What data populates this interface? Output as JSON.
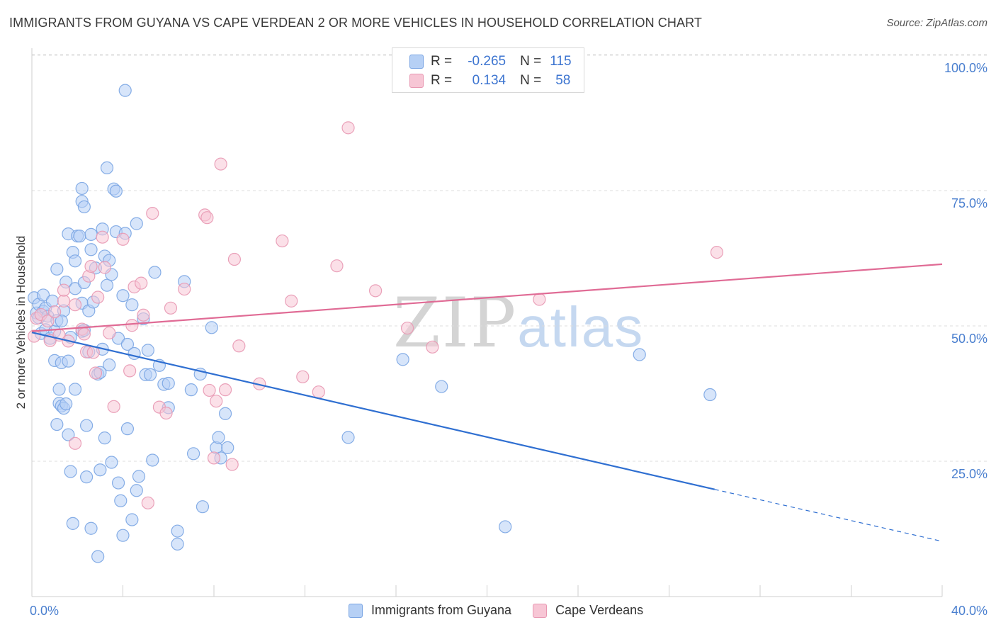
{
  "title": "IMMIGRANTS FROM GUYANA VS CAPE VERDEAN 2 OR MORE VEHICLES IN HOUSEHOLD CORRELATION CHART",
  "source": "Source: ZipAtlas.com",
  "watermark": {
    "part1": "ZIP",
    "part2": "atlas"
  },
  "legend_top": {
    "rows": [
      {
        "r_label": "R =",
        "r_value": "-0.265",
        "n_label": "N =",
        "n_value": "115",
        "color": "#b6d0f5"
      },
      {
        "r_label": "R =",
        "r_value": "0.134",
        "n_label": "N =",
        "n_value": "58",
        "color": "#f7c6d5"
      }
    ]
  },
  "chart_data": {
    "type": "scatter",
    "title": "IMMIGRANTS FROM GUYANA VS CAPE VERDEAN 2 OR MORE VEHICLES IN HOUSEHOLD CORRELATION CHART",
    "xlabel": "",
    "ylabel": "2 or more Vehicles in Household",
    "xlim": [
      0,
      40
    ],
    "ylim": [
      0,
      102
    ],
    "x_tick_labels": [
      "0.0%",
      "40.0%"
    ],
    "y_ticks": [
      25,
      50,
      75,
      100
    ],
    "y_tick_labels": [
      "25.0%",
      "50.0%",
      "75.0%",
      "100.0%"
    ],
    "grid": true,
    "legend_position": "bottom-center",
    "series": [
      {
        "name": "Immigrants from Guyana",
        "color": "#7aa5e3",
        "fill": "#b6d0f5",
        "trend": {
          "x0": 0,
          "y0": 48.8,
          "x1": 30,
          "y1": 19.8,
          "dashed_to_x": 40,
          "dashed_to_y": 10.2
        },
        "points": [
          [
            0.1,
            55.2
          ],
          [
            0.2,
            52.4
          ],
          [
            0.3,
            54.0
          ],
          [
            0.3,
            51.5
          ],
          [
            0.4,
            48.6
          ],
          [
            0.5,
            55.7
          ],
          [
            0.5,
            52.7
          ],
          [
            0.6,
            49.3
          ],
          [
            0.6,
            53.3
          ],
          [
            0.7,
            51.8
          ],
          [
            0.8,
            47.7
          ],
          [
            0.9,
            54.6
          ],
          [
            1.0,
            43.6
          ],
          [
            1.0,
            49.0
          ],
          [
            1.1,
            51.0
          ],
          [
            1.1,
            31.8
          ],
          [
            1.1,
            60.5
          ],
          [
            1.2,
            35.7
          ],
          [
            1.2,
            38.3
          ],
          [
            1.3,
            35.2
          ],
          [
            1.3,
            43.2
          ],
          [
            1.4,
            34.8
          ],
          [
            1.4,
            52.8
          ],
          [
            1.5,
            35.6
          ],
          [
            1.5,
            58.1
          ],
          [
            1.6,
            43.5
          ],
          [
            1.6,
            67.0
          ],
          [
            1.6,
            29.9
          ],
          [
            1.7,
            23.1
          ],
          [
            1.7,
            47.9
          ],
          [
            1.8,
            63.6
          ],
          [
            1.9,
            62.0
          ],
          [
            1.8,
            13.5
          ],
          [
            1.9,
            56.9
          ],
          [
            2.0,
            66.6
          ],
          [
            2.1,
            66.6
          ],
          [
            1.9,
            38.3
          ],
          [
            2.2,
            73.0
          ],
          [
            2.2,
            75.4
          ],
          [
            2.3,
            72.0
          ],
          [
            2.2,
            54.2
          ],
          [
            2.3,
            58.0
          ],
          [
            2.2,
            49.0
          ],
          [
            2.3,
            49.2
          ],
          [
            2.4,
            22.1
          ],
          [
            2.5,
            45.2
          ],
          [
            2.5,
            52.8
          ],
          [
            2.4,
            31.6
          ],
          [
            2.6,
            66.9
          ],
          [
            2.6,
            64.1
          ],
          [
            2.7,
            54.4
          ],
          [
            2.6,
            12.6
          ],
          [
            2.8,
            60.7
          ],
          [
            2.9,
            7.4
          ],
          [
            2.9,
            41.1
          ],
          [
            3.0,
            41.4
          ],
          [
            3.0,
            23.4
          ],
          [
            3.1,
            67.9
          ],
          [
            3.1,
            45.7
          ],
          [
            3.2,
            29.3
          ],
          [
            3.2,
            62.9
          ],
          [
            3.3,
            79.2
          ],
          [
            3.3,
            57.5
          ],
          [
            3.4,
            62.1
          ],
          [
            3.4,
            42.8
          ],
          [
            3.5,
            24.8
          ],
          [
            3.5,
            59.5
          ],
          [
            3.6,
            75.3
          ],
          [
            3.7,
            67.4
          ],
          [
            3.8,
            21.0
          ],
          [
            3.8,
            47.7
          ],
          [
            3.9,
            17.7
          ],
          [
            4.0,
            55.6
          ],
          [
            4.0,
            11.3
          ],
          [
            4.1,
            67.1
          ],
          [
            4.1,
            93.5
          ],
          [
            4.2,
            46.6
          ],
          [
            4.2,
            31.0
          ],
          [
            4.4,
            53.9
          ],
          [
            4.4,
            14.2
          ],
          [
            4.5,
            44.9
          ],
          [
            4.6,
            68.9
          ],
          [
            4.6,
            19.6
          ],
          [
            4.7,
            22.2
          ],
          [
            4.9,
            51.3
          ],
          [
            5.0,
            41.0
          ],
          [
            5.1,
            45.5
          ],
          [
            5.2,
            41.0
          ],
          [
            5.3,
            25.2
          ],
          [
            5.4,
            59.9
          ],
          [
            5.6,
            42.7
          ],
          [
            5.8,
            39.2
          ],
          [
            6.0,
            39.4
          ],
          [
            6.0,
            34.9
          ],
          [
            6.4,
            9.7
          ],
          [
            6.4,
            12.1
          ],
          [
            6.7,
            58.2
          ],
          [
            7.0,
            38.2
          ],
          [
            7.1,
            26.4
          ],
          [
            7.4,
            41.1
          ],
          [
            7.5,
            16.6
          ],
          [
            7.9,
            49.7
          ],
          [
            8.1,
            27.5
          ],
          [
            8.2,
            29.4
          ],
          [
            8.3,
            25.6
          ],
          [
            8.5,
            33.8
          ],
          [
            8.6,
            27.5
          ],
          [
            13.9,
            29.4
          ],
          [
            16.3,
            43.8
          ],
          [
            18.0,
            38.8
          ],
          [
            20.8,
            12.9
          ],
          [
            26.7,
            44.7
          ],
          [
            29.8,
            37.3
          ],
          [
            3.7,
            74.9
          ],
          [
            1.3,
            50.9
          ]
        ]
      },
      {
        "name": "Cape Verdeans",
        "color": "#e898b2",
        "fill": "#f7c6d5",
        "trend": {
          "x0": 0,
          "y0": 49.0,
          "x1": 40,
          "y1": 61.4
        },
        "points": [
          [
            0.1,
            48.1
          ],
          [
            0.2,
            51.4
          ],
          [
            0.4,
            52.1
          ],
          [
            0.7,
            50.9
          ],
          [
            0.8,
            47.3
          ],
          [
            1.0,
            52.6
          ],
          [
            1.2,
            48.3
          ],
          [
            1.4,
            54.6
          ],
          [
            1.4,
            56.6
          ],
          [
            1.6,
            47.2
          ],
          [
            1.9,
            53.9
          ],
          [
            1.9,
            28.3
          ],
          [
            2.2,
            49.4
          ],
          [
            2.3,
            48.5
          ],
          [
            2.4,
            45.2
          ],
          [
            2.5,
            59.2
          ],
          [
            2.6,
            61.0
          ],
          [
            2.7,
            45.1
          ],
          [
            2.8,
            41.3
          ],
          [
            2.9,
            55.3
          ],
          [
            3.1,
            66.4
          ],
          [
            3.2,
            60.8
          ],
          [
            3.4,
            48.7
          ],
          [
            3.6,
            35.1
          ],
          [
            4.0,
            66.0
          ],
          [
            4.3,
            41.7
          ],
          [
            4.4,
            50.1
          ],
          [
            4.5,
            57.2
          ],
          [
            4.8,
            57.9
          ],
          [
            4.9,
            52.0
          ],
          [
            5.1,
            17.3
          ],
          [
            5.3,
            70.8
          ],
          [
            5.6,
            35.0
          ],
          [
            5.9,
            33.9
          ],
          [
            6.1,
            53.3
          ],
          [
            6.7,
            56.8
          ],
          [
            7.6,
            70.5
          ],
          [
            7.7,
            70.0
          ],
          [
            7.8,
            38.1
          ],
          [
            8.0,
            25.6
          ],
          [
            8.1,
            36.1
          ],
          [
            8.5,
            38.2
          ],
          [
            8.8,
            24.4
          ],
          [
            8.9,
            62.3
          ],
          [
            8.3,
            79.9
          ],
          [
            9.1,
            46.3
          ],
          [
            10.0,
            39.3
          ],
          [
            11.0,
            65.7
          ],
          [
            11.4,
            54.6
          ],
          [
            11.9,
            40.6
          ],
          [
            12.6,
            37.8
          ],
          [
            13.4,
            61.1
          ],
          [
            13.9,
            86.6
          ],
          [
            15.1,
            56.5
          ],
          [
            16.5,
            49.6
          ],
          [
            17.6,
            46.1
          ],
          [
            22.3,
            54.9
          ],
          [
            30.1,
            63.6
          ]
        ]
      }
    ]
  },
  "legend_bottom": {
    "items": [
      {
        "label": "Immigrants from Guyana"
      },
      {
        "label": "Cape Verdeans"
      }
    ]
  }
}
